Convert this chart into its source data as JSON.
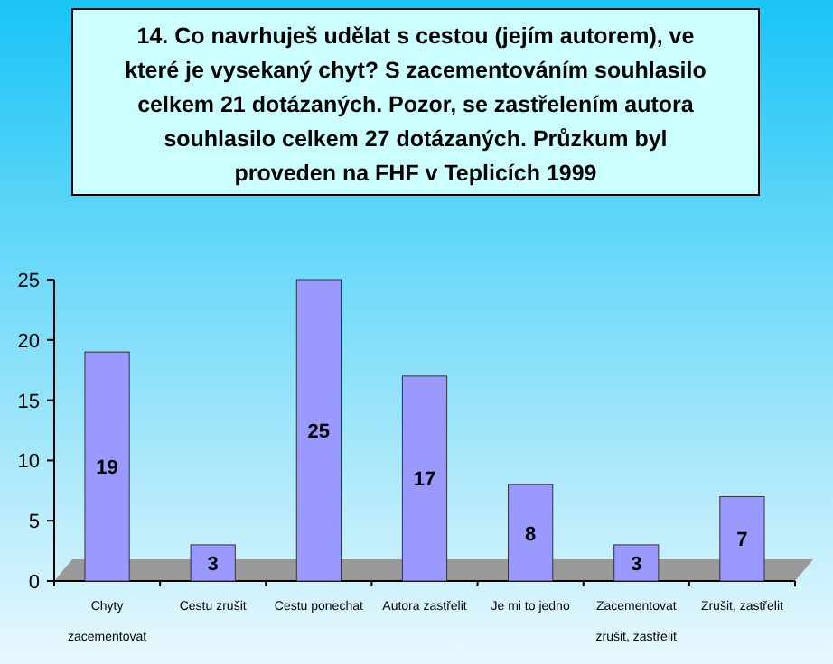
{
  "chart_data": {
    "type": "bar",
    "title": "14. Co navrhuješ udělat s cestou (jejím autorem), ve které je vysekaný chyt? S zacementováním souhlasilo celkem 21 dotázaných. Pozor, se zastřelením autora souhlasilo celkem 27 dotázaných. Průzkum byl proveden na FHF v Teplicích 1999",
    "categories": [
      "Chyty zacementovat",
      "Cestu zrušit",
      "Cestu ponechat",
      "Autora zastřelit",
      "Je mi to jedno",
      "Zacementovat zrušit, zastřelit",
      "Zrušit, zastřelit"
    ],
    "values": [
      19,
      3,
      25,
      17,
      8,
      3,
      7
    ],
    "color": "#9999ff",
    "ylim": [
      0,
      25
    ],
    "yticks": [
      0,
      5,
      10,
      15,
      20,
      25
    ],
    "data_labels": true
  }
}
